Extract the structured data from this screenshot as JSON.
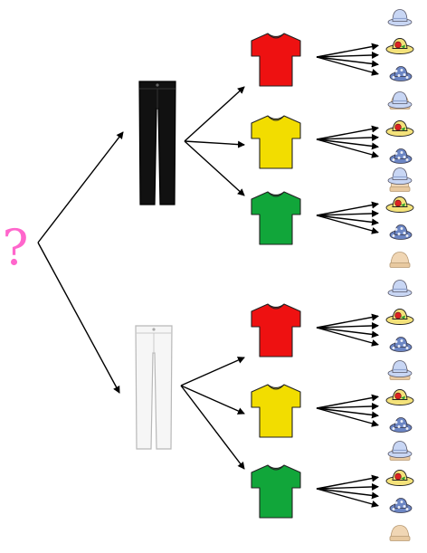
{
  "root": {
    "symbol": "?",
    "color": "#ff66cc"
  },
  "colors": {
    "arrow": "#000000",
    "black_jeans": "#111111",
    "white_jeans": "#f6f6f6",
    "white_jeans_outline": "#b8b8b8"
  },
  "pants": [
    {
      "name": "black-jeans",
      "icon": "black-jeans-icon"
    },
    {
      "name": "white-jeans",
      "icon": "white-jeans-icon"
    }
  ],
  "shirts": [
    {
      "name": "red-shirt",
      "icon": "tshirt-icon",
      "color": "#ee1111"
    },
    {
      "name": "yellow-shirt",
      "icon": "tshirt-icon",
      "color": "#f2dd00"
    },
    {
      "name": "green-shirt",
      "icon": "tshirt-icon",
      "color": "#11a63a"
    }
  ],
  "hats": [
    {
      "name": "blue-bucket-hat",
      "icon": "bucket-hat-icon",
      "color": "#c8d6f4"
    },
    {
      "name": "flower-sun-hat",
      "icon": "sun-hat-icon",
      "color": "#f4e27a"
    },
    {
      "name": "floral-patterned-hat",
      "icon": "patterned-hat-icon",
      "color": "#6c86c4"
    },
    {
      "name": "tan-beanie",
      "icon": "beanie-icon",
      "color": "#f0d6b4"
    }
  ]
}
